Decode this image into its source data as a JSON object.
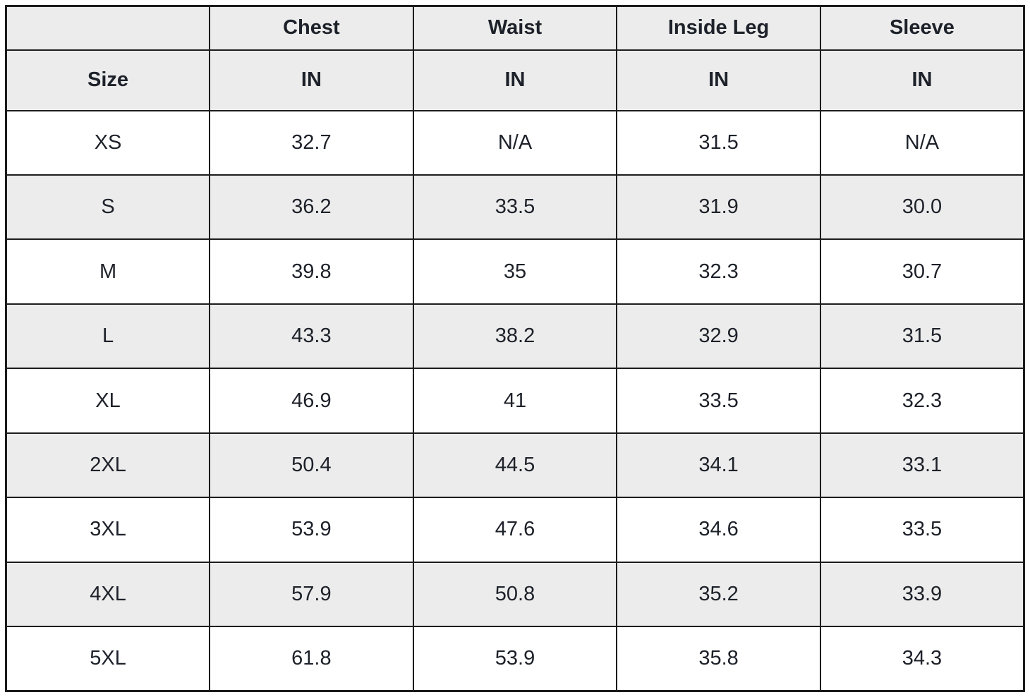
{
  "colors": {
    "border": "#1c1c1c",
    "header_bg": "#ececec",
    "stripe_bg": "#ececec",
    "row_bg": "#ffffff",
    "text": "#1d2129",
    "page_bg": "#ffffff"
  },
  "size_chart": {
    "header": {
      "corner": "",
      "columns": [
        "Chest",
        "Waist",
        "Inside Leg",
        "Sleeve"
      ],
      "row_label": "Size",
      "units": [
        "IN",
        "IN",
        "IN",
        "IN"
      ]
    },
    "rows": [
      {
        "size": "XS",
        "chest": "32.7",
        "waist": "N/A",
        "inside_leg": "31.5",
        "sleeve": "N/A"
      },
      {
        "size": "S",
        "chest": "36.2",
        "waist": "33.5",
        "inside_leg": "31.9",
        "sleeve": "30.0"
      },
      {
        "size": "M",
        "chest": "39.8",
        "waist": "35",
        "inside_leg": "32.3",
        "sleeve": "30.7"
      },
      {
        "size": "L",
        "chest": "43.3",
        "waist": "38.2",
        "inside_leg": "32.9",
        "sleeve": "31.5"
      },
      {
        "size": "XL",
        "chest": "46.9",
        "waist": "41",
        "inside_leg": "33.5",
        "sleeve": "32.3"
      },
      {
        "size": "2XL",
        "chest": "50.4",
        "waist": "44.5",
        "inside_leg": "34.1",
        "sleeve": "33.1"
      },
      {
        "size": "3XL",
        "chest": "53.9",
        "waist": "47.6",
        "inside_leg": "34.6",
        "sleeve": "33.5"
      },
      {
        "size": "4XL",
        "chest": "57.9",
        "waist": "50.8",
        "inside_leg": "35.2",
        "sleeve": "33.9"
      },
      {
        "size": "5XL",
        "chest": "61.8",
        "waist": "53.9",
        "inside_leg": "35.8",
        "sleeve": "34.3"
      }
    ]
  }
}
